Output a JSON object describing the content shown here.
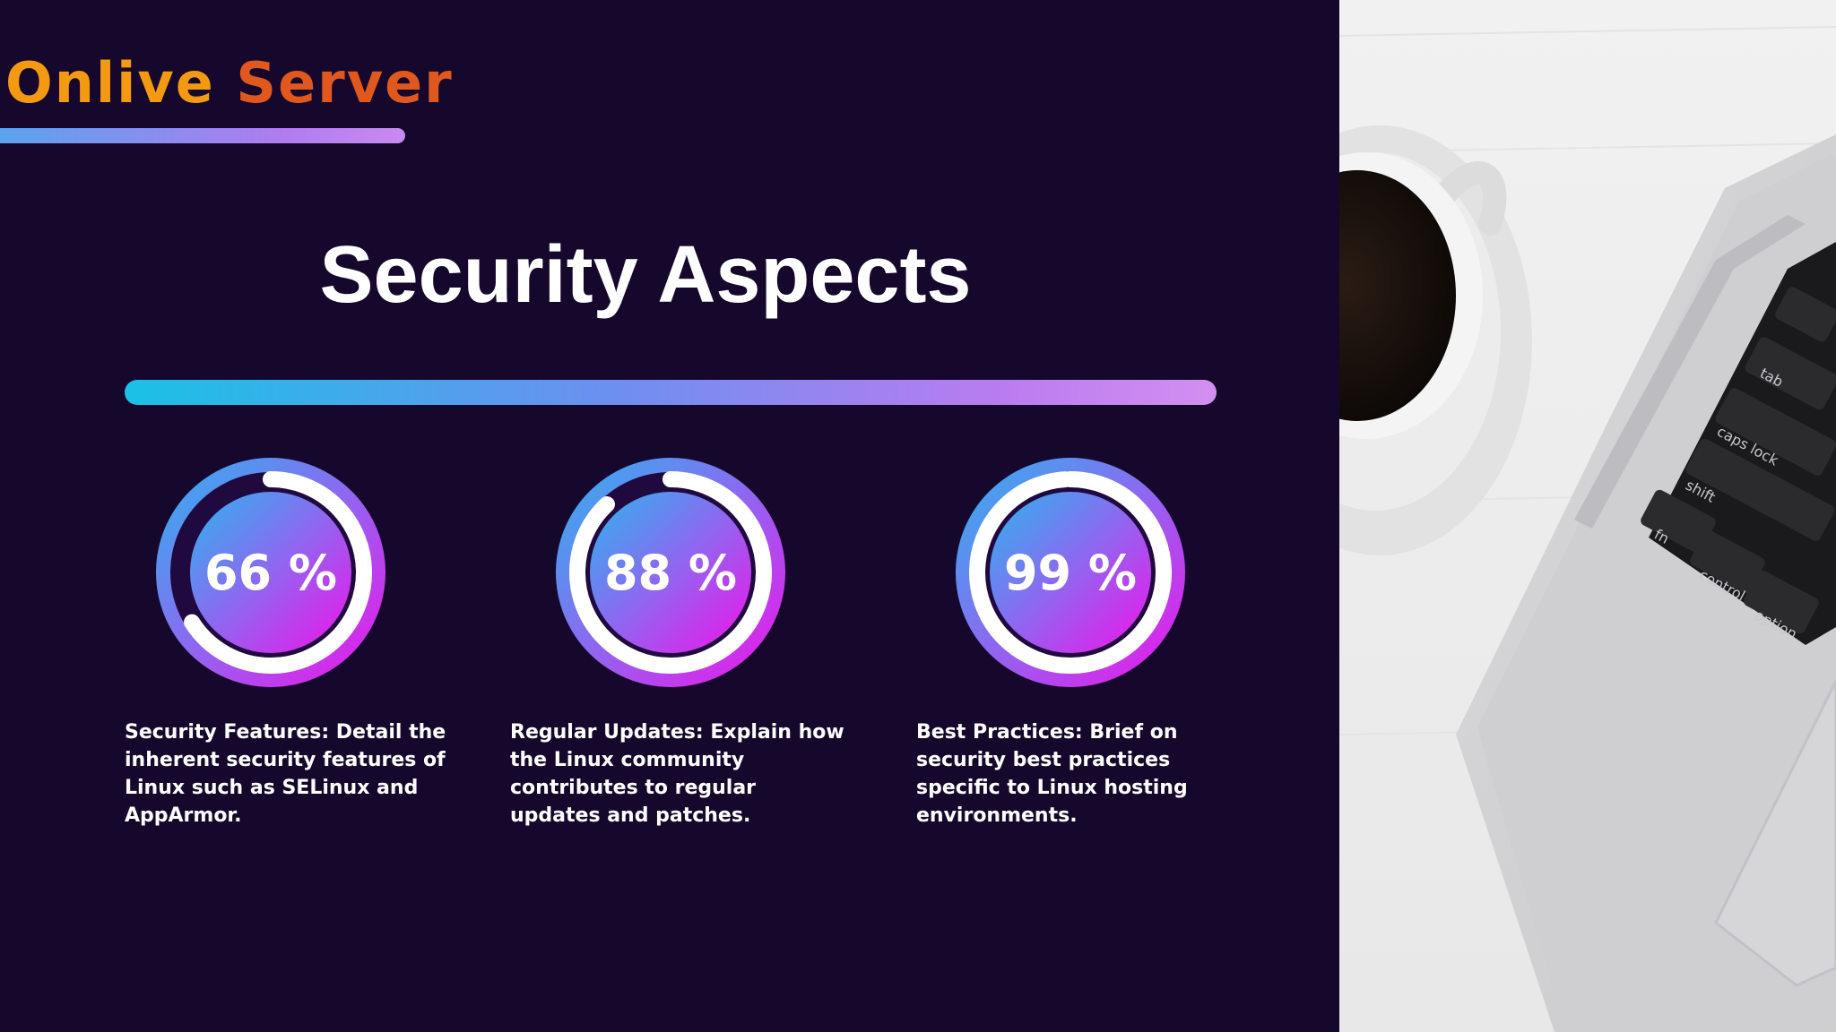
{
  "logo": {
    "word1": "Onlive",
    "word2": "Server"
  },
  "title": "Security Aspects",
  "gauges": [
    {
      "label": "66 %",
      "value": 66,
      "caption": "Security Features: Detail the inherent security features of Linux such as SELinux and AppArmor."
    },
    {
      "label": "88 %",
      "value": 88,
      "caption": "Regular Updates: Explain how the Linux community contributes to regular updates and patches."
    },
    {
      "label": "99 %",
      "value": 99,
      "caption": "Best Practices: Brief on security best practices specific to Linux hosting environments."
    }
  ],
  "photo": {
    "keys": [
      "tab",
      "caps lock",
      "shift",
      "fn",
      "control",
      "option"
    ]
  },
  "colors": {
    "background": "#16082c",
    "accent_purple": "#b97cf0",
    "accent_cyan": "#1ac1e6",
    "logo_orange": "#f39a12",
    "logo_red": "#e0581d",
    "arrow_purple": "#b25be6"
  },
  "icons": {
    "next": "triple-chevron-right-icon"
  }
}
